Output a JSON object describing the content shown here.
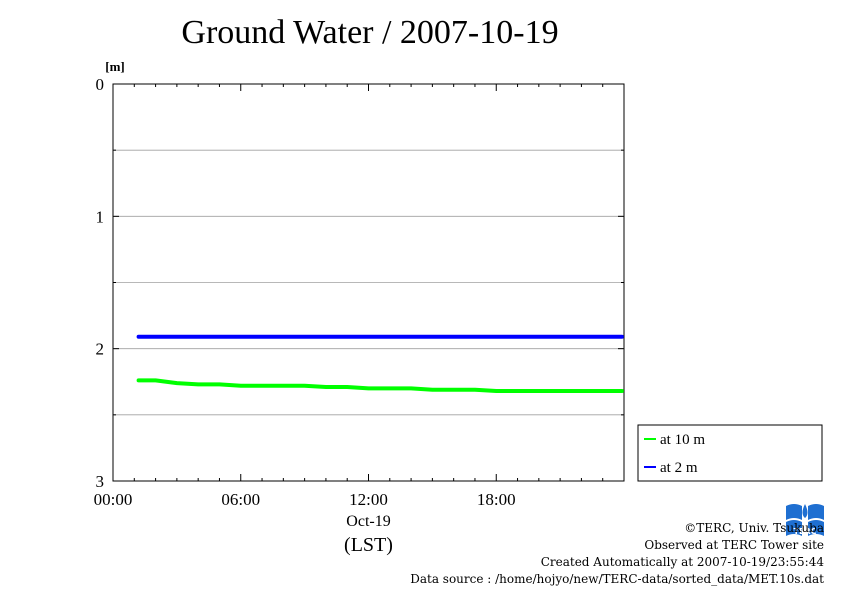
{
  "page": {
    "title": "Ground Water / 2007-10-19"
  },
  "chart_data": {
    "type": "line",
    "title": "Ground Water / 2007-10-19",
    "ylabel_unit": "[m]",
    "y_inverted": true,
    "ylim": [
      0,
      3
    ],
    "yticks": [
      0,
      1,
      2,
      3
    ],
    "y_minor_grid": [
      0.5,
      1.5,
      2.5
    ],
    "xlim_hours": [
      0,
      24
    ],
    "xticks": [
      {
        "hour": 0,
        "label": "00:00"
      },
      {
        "hour": 6,
        "label": "06:00"
      },
      {
        "hour": 12,
        "label": "12:00"
      },
      {
        "hour": 18,
        "label": "18:00"
      }
    ],
    "x_date_label": "Oct-19",
    "x_tz_label": "(LST)",
    "grid": true,
    "legend_position": "bottom-right-outside",
    "series": [
      {
        "name": "at 10 m",
        "color": "#00ff00",
        "x": [
          1.2,
          2,
          3,
          4,
          5,
          6,
          7,
          8,
          9,
          10,
          11,
          12,
          13,
          14,
          15,
          16,
          17,
          18,
          19,
          20,
          21,
          22,
          23.9
        ],
        "y": [
          2.24,
          2.24,
          2.26,
          2.27,
          2.27,
          2.28,
          2.28,
          2.28,
          2.28,
          2.29,
          2.29,
          2.3,
          2.3,
          2.3,
          2.31,
          2.31,
          2.31,
          2.32,
          2.32,
          2.32,
          2.32,
          2.32,
          2.32
        ]
      },
      {
        "name": "at 2 m",
        "color": "#0000ff",
        "x": [
          1.2,
          6,
          12,
          18,
          23.9
        ],
        "y": [
          1.91,
          1.91,
          1.91,
          1.91,
          1.91
        ]
      }
    ]
  },
  "credits": {
    "copyright": "©TERC, Univ. Tsukuba",
    "observed": "Observed at TERC Tower site",
    "created": "Created Automatically at 2007-10-19/23:55:44",
    "source": "Data source : /home/hojyo/new/TERC-data/sorted_data/MET.10s.dat",
    "logo_text": "TERC"
  }
}
